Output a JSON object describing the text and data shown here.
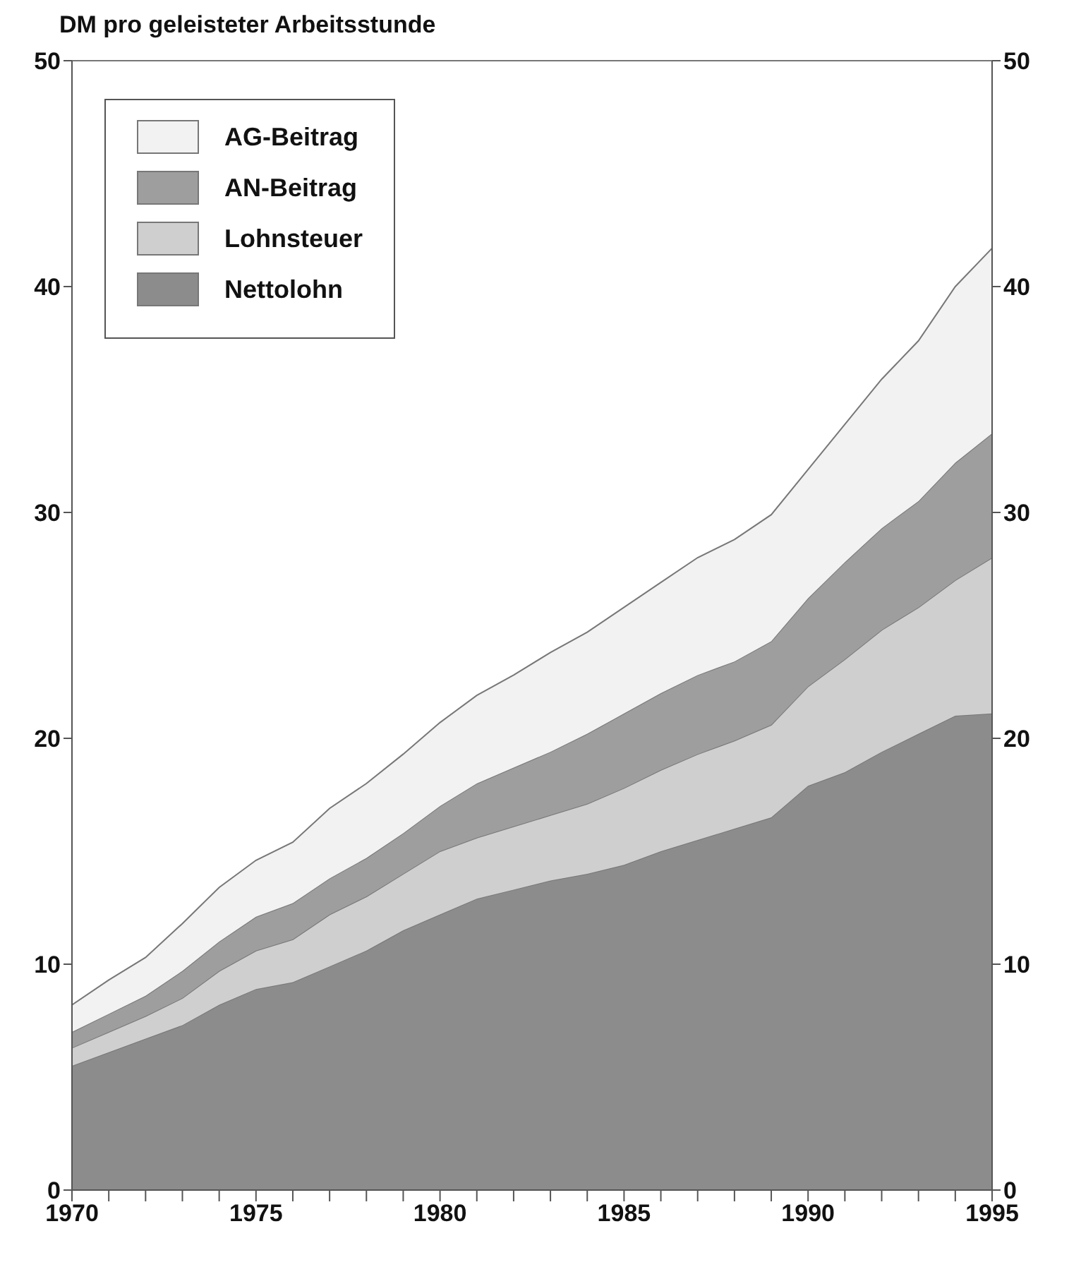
{
  "chart_data": {
    "type": "area",
    "stacked": true,
    "ylabel": "DM pro geleisteter Arbeitsstunde",
    "x": [
      1970,
      1971,
      1972,
      1973,
      1974,
      1975,
      1976,
      1977,
      1978,
      1979,
      1980,
      1981,
      1982,
      1983,
      1984,
      1985,
      1986,
      1987,
      1988,
      1989,
      1990,
      1991,
      1992,
      1993,
      1994,
      1995
    ],
    "series": [
      {
        "name": "Nettolohn",
        "color": "#8c8c8c",
        "values": [
          5.5,
          6.1,
          6.7,
          7.3,
          8.2,
          8.9,
          9.2,
          9.9,
          10.6,
          11.5,
          12.2,
          12.9,
          13.3,
          13.7,
          14.0,
          14.4,
          15.0,
          15.5,
          16.0,
          16.5,
          17.9,
          18.5,
          19.4,
          20.2,
          21.0,
          21.1
        ]
      },
      {
        "name": "Lohnsteuer",
        "color": "#cfcfcf",
        "values": [
          0.8,
          0.9,
          1.0,
          1.2,
          1.5,
          1.7,
          1.9,
          2.3,
          2.4,
          2.5,
          2.8,
          2.7,
          2.8,
          2.9,
          3.1,
          3.4,
          3.6,
          3.8,
          3.9,
          4.1,
          4.4,
          5.0,
          5.4,
          5.6,
          6.0,
          6.9
        ]
      },
      {
        "name": "AN-Beitrag",
        "color": "#9e9e9e",
        "values": [
          0.7,
          0.8,
          0.9,
          1.2,
          1.3,
          1.5,
          1.6,
          1.6,
          1.7,
          1.8,
          2.0,
          2.4,
          2.6,
          2.8,
          3.1,
          3.3,
          3.4,
          3.5,
          3.5,
          3.7,
          3.9,
          4.3,
          4.5,
          4.7,
          5.2,
          5.5
        ]
      },
      {
        "name": "AG-Beitrag",
        "color": "#f2f2f2",
        "values": [
          1.2,
          1.5,
          1.7,
          2.1,
          2.4,
          2.5,
          2.7,
          3.1,
          3.3,
          3.5,
          3.7,
          3.9,
          4.1,
          4.4,
          4.5,
          4.7,
          4.9,
          5.2,
          5.4,
          5.6,
          5.7,
          6.1,
          6.6,
          7.1,
          7.8,
          8.2
        ]
      }
    ],
    "xlim": [
      1970,
      1995
    ],
    "xticks": [
      1970,
      {
        "value": 1971,
        "label": null
      },
      {
        "value": 1972,
        "label": null
      },
      {
        "value": 1973,
        "label": null
      },
      {
        "value": 1974,
        "label": null
      },
      1975,
      {
        "value": 1976,
        "label": null
      },
      {
        "value": 1977,
        "label": null
      },
      {
        "value": 1978,
        "label": null
      },
      {
        "value": 1979,
        "label": null
      },
      1980,
      {
        "value": 1981,
        "label": null
      },
      {
        "value": 1982,
        "label": null
      },
      {
        "value": 1983,
        "label": null
      },
      {
        "value": 1984,
        "label": null
      },
      1985,
      {
        "value": 1986,
        "label": null
      },
      {
        "value": 1987,
        "label": null
      },
      {
        "value": 1988,
        "label": null
      },
      {
        "value": 1989,
        "label": null
      },
      1990,
      {
        "value": 1991,
        "label": null
      },
      {
        "value": 1992,
        "label": null
      },
      {
        "value": 1993,
        "label": null
      },
      {
        "value": 1994,
        "label": null
      },
      1995
    ],
    "ylim": [
      0,
      50
    ],
    "yticks": [
      0,
      10,
      20,
      30,
      40,
      50
    ],
    "y2lim": [
      0,
      50
    ],
    "y2ticks": [
      0,
      10,
      20,
      30,
      40,
      50
    ],
    "legend": "top left",
    "grid": false
  }
}
